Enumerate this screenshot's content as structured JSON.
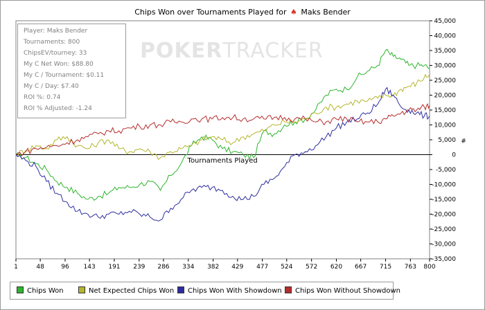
{
  "window": {
    "title_prefix": "Chips Won over Tournaments Played for",
    "player_name": "Maks Bender",
    "title_icon": "poker-suit-icon"
  },
  "watermark": {
    "bold": "POKER",
    "thin": "TRACKER"
  },
  "stats": [
    "Player: Maks Bender",
    "Tournaments: 800",
    "ChipsEV/tourney: 33",
    "My C Net Won: $88.80",
    "My C / Tournament: $0.11",
    "My C / Day: $7.40",
    "ROI %: 0.74",
    "ROI % Adjusted: -1.24"
  ],
  "legend": [
    {
      "label": "Chips Won",
      "color": "#2db52d"
    },
    {
      "label": "Net Expected Chips Won",
      "color": "#b5b52d"
    },
    {
      "label": "Chips Won With Showdown",
      "color": "#2d2da0"
    },
    {
      "label": "Chips Won Without Showdown",
      "color": "#b52d2d"
    }
  ],
  "chart_data": {
    "type": "line",
    "title": "Chips Won over Tournaments Played for Maks Bender",
    "xlabel": "Tournaments Played",
    "ylabel": "#",
    "xlim": [
      1,
      800
    ],
    "ylim": [
      -35000,
      45000
    ],
    "x_ticks": [
      "1",
      "48",
      "96",
      "143",
      "191",
      "239",
      "286",
      "334",
      "382",
      "429",
      "477",
      "524",
      "572",
      "620",
      "667",
      "715",
      "763",
      "800"
    ],
    "y_ticks": [
      "45,000",
      "40,000",
      "35,000",
      "30,000",
      "25,000",
      "20,000",
      "15,000",
      "10,000",
      "5,000",
      "0",
      "-5,000",
      "-10,000",
      "-15,000",
      "-20,000",
      "-25,000",
      "-30,000",
      "-35,000"
    ],
    "grid": false,
    "legend_position": "bottom",
    "series": [
      {
        "name": "Chips Won",
        "color": "#2db52d",
        "x": [
          1,
          20,
          40,
          60,
          80,
          100,
          120,
          140,
          160,
          180,
          200,
          220,
          240,
          260,
          280,
          300,
          320,
          340,
          360,
          380,
          400,
          420,
          440,
          460,
          480,
          500,
          520,
          540,
          560,
          580,
          600,
          620,
          640,
          660,
          680,
          700,
          715,
          730,
          745,
          760,
          775,
          790,
          800
        ],
        "y": [
          0,
          -1000,
          -3000,
          -5000,
          -9000,
          -11000,
          -13000,
          -15000,
          -14000,
          -13000,
          -11000,
          -11000,
          -10000,
          -9000,
          -12000,
          -7000,
          -3000,
          3000,
          6000,
          5000,
          2000,
          1000,
          0,
          -1000,
          8000,
          7000,
          10000,
          11000,
          12000,
          15000,
          20000,
          22000,
          22000,
          26000,
          28000,
          30000,
          35000,
          33000,
          32000,
          30000,
          30000,
          30000,
          29000
        ]
      },
      {
        "name": "Net Expected Chips Won",
        "color": "#b5b52d",
        "x": [
          1,
          20,
          40,
          60,
          80,
          100,
          120,
          140,
          160,
          180,
          200,
          220,
          240,
          260,
          280,
          300,
          320,
          340,
          360,
          380,
          400,
          420,
          440,
          460,
          480,
          500,
          520,
          540,
          560,
          580,
          600,
          620,
          640,
          660,
          680,
          700,
          715,
          730,
          745,
          760,
          775,
          790,
          800
        ],
        "y": [
          0,
          1500,
          3000,
          2000,
          5000,
          6000,
          3000,
          2000,
          4000,
          5000,
          2000,
          1000,
          2000,
          1000,
          -1000,
          1000,
          2000,
          3000,
          5000,
          6000,
          5000,
          4000,
          6000,
          7000,
          8000,
          10000,
          11000,
          11000,
          12000,
          14000,
          16000,
          16000,
          17000,
          18000,
          18000,
          19000,
          20000,
          20000,
          22000,
          23000,
          24000,
          26000,
          27000
        ]
      },
      {
        "name": "Chips Won With Showdown",
        "color": "#2d2da0",
        "x": [
          1,
          20,
          40,
          60,
          80,
          100,
          120,
          140,
          160,
          180,
          200,
          220,
          240,
          260,
          280,
          300,
          320,
          340,
          360,
          380,
          400,
          420,
          440,
          460,
          480,
          500,
          520,
          540,
          560,
          580,
          600,
          620,
          640,
          660,
          680,
          700,
          715,
          730,
          745,
          760,
          775,
          790,
          800
        ],
        "y": [
          0,
          -2000,
          -4000,
          -9000,
          -13000,
          -16000,
          -19000,
          -20000,
          -21000,
          -20000,
          -20000,
          -19000,
          -20000,
          -21000,
          -22000,
          -18000,
          -15000,
          -12000,
          -11000,
          -11000,
          -12000,
          -14000,
          -15000,
          -14000,
          -10000,
          -8000,
          -4000,
          0,
          1000,
          3000,
          6000,
          9000,
          11000,
          12000,
          14000,
          17000,
          22000,
          20000,
          16000,
          15000,
          14000,
          13000,
          13000
        ]
      },
      {
        "name": "Chips Won Without Showdown",
        "color": "#b52d2d",
        "x": [
          1,
          20,
          40,
          60,
          80,
          100,
          120,
          140,
          160,
          180,
          200,
          220,
          240,
          260,
          280,
          300,
          320,
          340,
          360,
          380,
          400,
          420,
          440,
          460,
          480,
          500,
          520,
          540,
          560,
          580,
          600,
          620,
          640,
          660,
          680,
          700,
          715,
          730,
          745,
          760,
          775,
          790,
          800
        ],
        "y": [
          0,
          1000,
          2000,
          2500,
          3000,
          4000,
          5000,
          6000,
          7000,
          8000,
          8000,
          9000,
          9500,
          10000,
          10000,
          11000,
          11000,
          12000,
          12000,
          12000,
          12500,
          12500,
          12000,
          12000,
          12000,
          12500,
          12500,
          12000,
          12000,
          11000,
          11000,
          12000,
          12000,
          11000,
          11000,
          11000,
          12000,
          13000,
          14000,
          15000,
          15000,
          16000,
          16500
        ]
      }
    ]
  }
}
